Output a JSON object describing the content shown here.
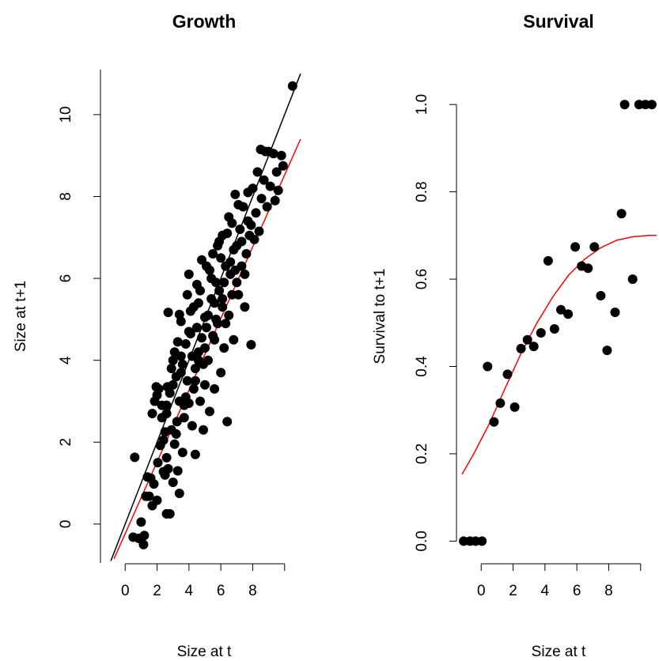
{
  "chart_data": [
    {
      "type": "scatter",
      "title": "Growth",
      "xlabel": "Size at t",
      "ylabel": "Size at t+1",
      "xlim": [
        -1.5,
        11.5
      ],
      "ylim": [
        -0.95,
        11.1
      ],
      "xticks": [
        "0",
        "2",
        "4",
        "6",
        "8"
      ],
      "yticks": [
        "0",
        "2",
        "4",
        "6",
        "8",
        "10"
      ],
      "colors": {
        "points": "#000000",
        "identity_line": "#000000",
        "fit_line": "#ff0000"
      },
      "lines": [
        {
          "x": [
            -0.9,
            11.0
          ],
          "y": [
            -0.9,
            11.0
          ],
          "color": "#000000"
        },
        {
          "x": [
            -0.7,
            11.0
          ],
          "y": [
            -0.85,
            9.4
          ],
          "color": "#ff0000"
        }
      ],
      "points": [
        [
          0.6,
          1.63
        ],
        [
          1.0,
          0.05
        ],
        [
          0.5,
          -0.32
        ],
        [
          0.85,
          -0.35
        ],
        [
          1.15,
          -0.5
        ],
        [
          1.2,
          -0.28
        ],
        [
          1.3,
          0.68
        ],
        [
          1.5,
          0.68
        ],
        [
          1.7,
          0.45
        ],
        [
          1.4,
          1.15
        ],
        [
          1.6,
          1.12
        ],
        [
          1.8,
          0.98
        ],
        [
          2.0,
          0.58
        ],
        [
          2.05,
          1.5
        ],
        [
          2.2,
          1.92
        ],
        [
          2.4,
          1.28
        ],
        [
          2.5,
          1.2
        ],
        [
          2.6,
          0.25
        ],
        [
          2.8,
          0.25
        ],
        [
          2.6,
          1.62
        ],
        [
          2.7,
          1.35
        ],
        [
          3.0,
          1.02
        ],
        [
          3.3,
          1.3
        ],
        [
          3.4,
          0.75
        ],
        [
          1.7,
          2.7
        ],
        [
          1.85,
          3.0
        ],
        [
          1.95,
          3.35
        ],
        [
          2.0,
          3.15
        ],
        [
          2.1,
          3.3
        ],
        [
          2.3,
          2.6
        ],
        [
          2.4,
          2.05
        ],
        [
          2.5,
          2.25
        ],
        [
          2.6,
          2.9
        ],
        [
          2.65,
          3.35
        ],
        [
          2.7,
          5.17
        ],
        [
          2.9,
          3.8
        ],
        [
          2.9,
          2.3
        ],
        [
          3.0,
          4.0
        ],
        [
          3.1,
          4.2
        ],
        [
          3.1,
          1.95
        ],
        [
          3.25,
          2.5
        ],
        [
          3.3,
          4.45
        ],
        [
          3.4,
          5.12
        ],
        [
          3.5,
          4.95
        ],
        [
          3.5,
          3.7
        ],
        [
          3.6,
          1.75
        ],
        [
          3.7,
          2.6
        ],
        [
          3.8,
          3.1
        ],
        [
          3.9,
          5.6
        ],
        [
          4.0,
          6.1
        ],
        [
          4.0,
          2.95
        ],
        [
          4.1,
          4.65
        ],
        [
          4.2,
          2.4
        ],
        [
          4.3,
          5.3
        ],
        [
          4.4,
          3.5
        ],
        [
          4.4,
          1.7
        ],
        [
          4.5,
          5.85
        ],
        [
          4.6,
          4.2
        ],
        [
          4.7,
          3.0
        ],
        [
          4.8,
          6.45
        ],
        [
          4.9,
          2.3
        ],
        [
          5.0,
          5.05
        ],
        [
          5.0,
          3.4
        ],
        [
          5.1,
          6.3
        ],
        [
          5.2,
          4.0
        ],
        [
          5.3,
          2.75
        ],
        [
          5.4,
          5.5
        ],
        [
          5.5,
          4.6
        ],
        [
          5.5,
          6.6
        ],
        [
          5.6,
          3.3
        ],
        [
          5.7,
          5.9
        ],
        [
          5.8,
          4.9
        ],
        [
          5.9,
          6.9
        ],
        [
          6.0,
          3.7
        ],
        [
          6.1,
          5.3
        ],
        [
          6.1,
          7.05
        ],
        [
          6.2,
          4.3
        ],
        [
          6.3,
          6.3
        ],
        [
          6.4,
          2.5
        ],
        [
          6.5,
          7.5
        ],
        [
          6.5,
          5.1
        ],
        [
          6.6,
          6.1
        ],
        [
          6.7,
          7.35
        ],
        [
          6.8,
          4.5
        ],
        [
          6.9,
          8.05
        ],
        [
          7.0,
          6.8
        ],
        [
          7.1,
          5.6
        ],
        [
          7.2,
          7.2
        ],
        [
          7.3,
          6.3
        ],
        [
          7.4,
          7.75
        ],
        [
          7.5,
          5.3
        ],
        [
          7.6,
          6.6
        ],
        [
          7.7,
          8.1
        ],
        [
          7.8,
          7.05
        ],
        [
          7.9,
          4.38
        ],
        [
          8.0,
          8.2
        ],
        [
          8.1,
          6.95
        ],
        [
          8.2,
          7.6
        ],
        [
          8.3,
          8.6
        ],
        [
          8.4,
          7.15
        ],
        [
          8.5,
          9.15
        ],
        [
          8.55,
          7.95
        ],
        [
          8.7,
          8.4
        ],
        [
          8.8,
          9.1
        ],
        [
          8.9,
          7.75
        ],
        [
          9.0,
          9.1
        ],
        [
          9.1,
          8.25
        ],
        [
          9.3,
          9.05
        ],
        [
          9.4,
          7.9
        ],
        [
          9.5,
          8.6
        ],
        [
          9.6,
          8.15
        ],
        [
          9.8,
          9.0
        ],
        [
          9.9,
          8.75
        ],
        [
          10.5,
          10.7
        ],
        [
          2.3,
          2.9
        ],
        [
          2.8,
          3.2
        ],
        [
          3.2,
          3.6
        ],
        [
          3.6,
          3.9
        ],
        [
          3.8,
          4.4
        ],
        [
          4.2,
          4.1
        ],
        [
          4.5,
          4.8
        ],
        [
          4.8,
          4.55
        ],
        [
          5.2,
          5.1
        ],
        [
          5.6,
          5.4
        ],
        [
          5.9,
          5.7
        ],
        [
          6.2,
          5.9
        ],
        [
          6.6,
          6.4
        ],
        [
          6.9,
          6.2
        ],
        [
          7.3,
          6.9
        ],
        [
          7.7,
          7.4
        ],
        [
          4.0,
          4.7
        ],
        [
          4.6,
          5.4
        ],
        [
          5.4,
          6.0
        ],
        [
          6.0,
          6.5
        ],
        [
          3.2,
          2.2
        ],
        [
          3.7,
          2.9
        ],
        [
          4.3,
          3.3
        ],
        [
          4.9,
          3.9
        ],
        [
          5.6,
          4.5
        ],
        [
          6.3,
          4.9
        ],
        [
          7.0,
          5.9
        ],
        [
          7.5,
          6.1
        ],
        [
          3.0,
          3.4
        ],
        [
          3.5,
          4.1
        ],
        [
          4.1,
          5.2
        ],
        [
          4.7,
          5.7
        ],
        [
          5.3,
          6.2
        ],
        [
          5.8,
          6.8
        ],
        [
          6.4,
          7.1
        ],
        [
          7.1,
          7.8
        ],
        [
          2.6,
          2.7
        ],
        [
          3.4,
          3.0
        ],
        [
          4.4,
          3.8
        ],
        [
          5.0,
          4.3
        ],
        [
          5.7,
          5.0
        ],
        [
          6.7,
          5.6
        ],
        [
          3.9,
          3.5
        ],
        [
          4.6,
          4.0
        ],
        [
          5.1,
          4.8
        ],
        [
          6.1,
          5.5
        ],
        [
          6.8,
          6.7
        ],
        [
          7.9,
          7.3
        ]
      ]
    },
    {
      "type": "scatter",
      "title": "Survival",
      "xlabel": "Size at t",
      "ylabel": "Survival to t+1",
      "xlim": [
        -1.5,
        11.5
      ],
      "ylim": [
        -0.05,
        1.08
      ],
      "xticks": [
        "0",
        "2",
        "4",
        "6",
        "8"
      ],
      "yticks": [
        "0.0",
        "0.2",
        "0.4",
        "0.6",
        "0.8",
        "1.0"
      ],
      "colors": {
        "points": "#000000",
        "fit_line": "#ff0000"
      },
      "lines": [
        {
          "x": [
            -1.2,
            -0.5,
            0.5,
            1.5,
            2.5,
            3.5,
            4.5,
            5.5,
            6.5,
            7.5,
            8.5,
            9.5,
            10.5,
            11.0
          ],
          "y": [
            0.153,
            0.198,
            0.268,
            0.35,
            0.43,
            0.5,
            0.56,
            0.61,
            0.646,
            0.672,
            0.689,
            0.697,
            0.7,
            0.7
          ],
          "color": "#ff0000"
        }
      ],
      "points": [
        [
          -1.1,
          0.0
        ],
        [
          -0.7,
          0.0
        ],
        [
          -0.35,
          0.0
        ],
        [
          0.05,
          0.0
        ],
        [
          0.4,
          0.4
        ],
        [
          0.8,
          0.273
        ],
        [
          1.2,
          0.316
        ],
        [
          1.65,
          0.382
        ],
        [
          2.1,
          0.307
        ],
        [
          2.5,
          0.441
        ],
        [
          2.9,
          0.461
        ],
        [
          3.3,
          0.446
        ],
        [
          3.75,
          0.477
        ],
        [
          4.2,
          0.642
        ],
        [
          4.6,
          0.486
        ],
        [
          5.0,
          0.53
        ],
        [
          5.45,
          0.52
        ],
        [
          5.9,
          0.674
        ],
        [
          6.3,
          0.63
        ],
        [
          6.7,
          0.625
        ],
        [
          7.1,
          0.674
        ],
        [
          7.5,
          0.562
        ],
        [
          7.9,
          0.437
        ],
        [
          8.4,
          0.524
        ],
        [
          8.8,
          0.75
        ],
        [
          9.0,
          1.0
        ],
        [
          9.5,
          0.6
        ],
        [
          9.9,
          1.0
        ],
        [
          10.3,
          1.0
        ],
        [
          10.7,
          1.0
        ]
      ]
    }
  ]
}
